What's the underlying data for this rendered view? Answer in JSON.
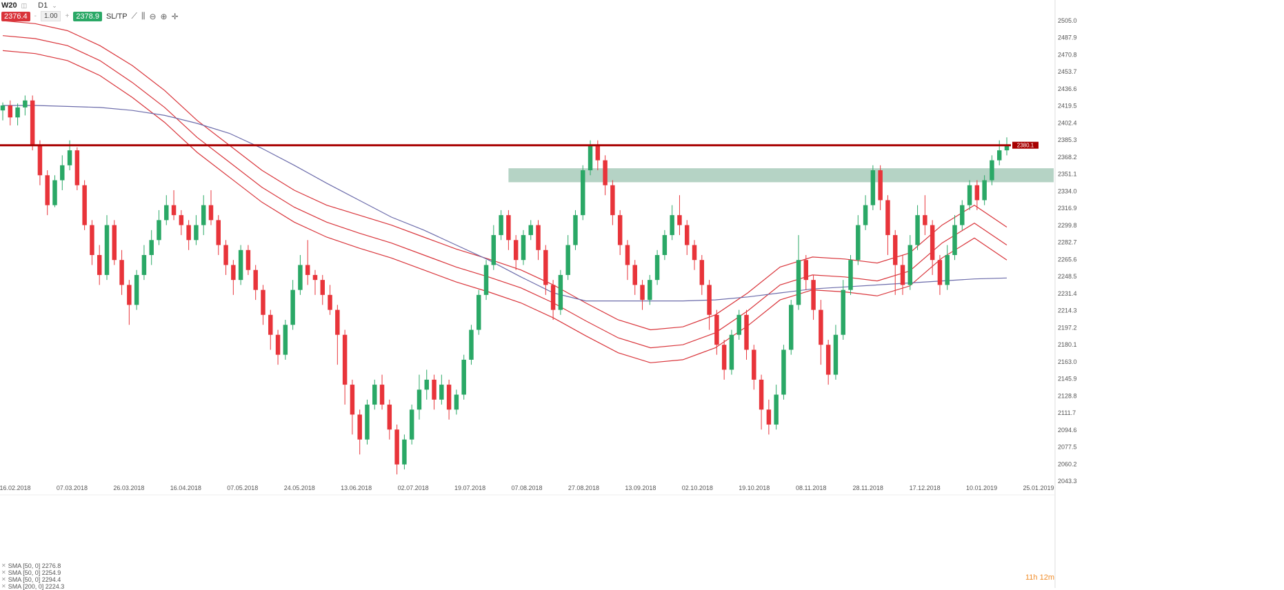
{
  "toolbar": {
    "symbol": "W20",
    "period": "D1",
    "sell_price": "2376.4",
    "volume": "1.00",
    "buy_price": "2378.9",
    "sl_tp": "SL/TP",
    "minus": "-",
    "plus": "+"
  },
  "timer": {
    "hours": "11h",
    "minutes": "12m"
  },
  "legend": [
    "SMA [50, 0] 2276.8",
    "SMA [50, 0] 2254.9",
    "SMA [50, 0] 2294.4",
    "SMA [200, 0] 2224.3"
  ],
  "colors": {
    "up": "#2aa866",
    "down": "#e8343a",
    "sma200": "#6b6baa",
    "sma_env": "#d9343a",
    "resistance": "#a80000",
    "zone": "#5c9e7e"
  },
  "chart_data": {
    "type": "candlestick",
    "ylim": [
      2043.3,
      2505.0
    ],
    "y_ticks": [
      "2505.0",
      "2487.9",
      "2470.8",
      "2453.7",
      "2436.6",
      "2419.5",
      "2402.4",
      "2385.3",
      "2368.2",
      "2351.1",
      "2334.0",
      "2316.9",
      "2299.8",
      "2282.7",
      "2265.6",
      "2248.5",
      "2231.4",
      "2214.3",
      "2197.2",
      "2180.1",
      "2163.0",
      "2145.9",
      "2128.8",
      "2111.7",
      "2094.6",
      "2077.5",
      "2060.2",
      "2043.3"
    ],
    "x_ticks": [
      "16.02.2018",
      "07.03.2018",
      "26.03.2018",
      "16.04.2018",
      "07.05.2018",
      "24.05.2018",
      "13.06.2018",
      "02.07.2018",
      "19.07.2018",
      "07.08.2018",
      "27.08.2018",
      "13.09.2018",
      "02.10.2018",
      "19.10.2018",
      "08.11.2018",
      "28.11.2018",
      "17.12.2018",
      "10.01.2019",
      "25.01.2019"
    ],
    "resistance_level": 2380.1,
    "resistance_label": "2380.1",
    "support_zone": [
      2343.0,
      2357.0
    ],
    "series": [
      {
        "name": "SMA [50, 0] 2276.8",
        "close": [
          2505,
          2502,
          2495,
          2480,
          2460,
          2435,
          2405,
          2380,
          2355,
          2335,
          2320,
          2310,
          2300,
          2288,
          2276,
          2266,
          2255,
          2240,
          2222,
          2205,
          2195,
          2198,
          2210,
          2232,
          2258,
          2268,
          2266,
          2262,
          2272,
          2300,
          2320,
          2298
        ]
      },
      {
        "name": "SMA [50, 0] 2254.9",
        "close": [
          2490,
          2487,
          2480,
          2465,
          2443,
          2418,
          2388,
          2363,
          2338,
          2318,
          2303,
          2292,
          2282,
          2270,
          2258,
          2248,
          2237,
          2222,
          2204,
          2187,
          2177,
          2180,
          2192,
          2214,
          2240,
          2250,
          2248,
          2244,
          2254,
          2282,
          2302,
          2280
        ]
      },
      {
        "name": "SMA [50, 0] 2294.4",
        "close": [
          2475,
          2472,
          2465,
          2450,
          2428,
          2403,
          2373,
          2348,
          2323,
          2303,
          2288,
          2277,
          2267,
          2255,
          2243,
          2233,
          2222,
          2207,
          2189,
          2172,
          2162,
          2165,
          2177,
          2199,
          2225,
          2235,
          2233,
          2229,
          2239,
          2267,
          2287,
          2265
        ]
      },
      {
        "name": "SMA [200, 0] 2224.3",
        "close": [
          2420,
          2420,
          2419,
          2418,
          2415,
          2410,
          2402,
          2392,
          2377,
          2360,
          2342,
          2325,
          2308,
          2295,
          2280,
          2265,
          2248,
          2232,
          2224,
          2224,
          2224,
          2224,
          2225,
          2228,
          2232,
          2236,
          2238,
          2240,
          2242,
          2244,
          2246,
          2247
        ]
      }
    ],
    "candles": [
      [
        2415,
        2420,
        2405,
        2423
      ],
      [
        2420,
        2408,
        2400,
        2425
      ],
      [
        2408,
        2418,
        2400,
        2422
      ],
      [
        2418,
        2425,
        2410,
        2430
      ],
      [
        2425,
        2380,
        2375,
        2430
      ],
      [
        2380,
        2350,
        2340,
        2385
      ],
      [
        2350,
        2320,
        2310,
        2355
      ],
      [
        2320,
        2345,
        2318,
        2350
      ],
      [
        2345,
        2360,
        2335,
        2370
      ],
      [
        2360,
        2375,
        2355,
        2385
      ],
      [
        2375,
        2340,
        2335,
        2378
      ],
      [
        2340,
        2300,
        2295,
        2345
      ],
      [
        2300,
        2270,
        2260,
        2305
      ],
      [
        2270,
        2250,
        2240,
        2280
      ],
      [
        2250,
        2300,
        2245,
        2310
      ],
      [
        2300,
        2265,
        2260,
        2305
      ],
      [
        2265,
        2240,
        2230,
        2275
      ],
      [
        2240,
        2220,
        2200,
        2245
      ],
      [
        2220,
        2250,
        2215,
        2255
      ],
      [
        2250,
        2270,
        2245,
        2280
      ],
      [
        2270,
        2285,
        2260,
        2295
      ],
      [
        2285,
        2305,
        2280,
        2315
      ],
      [
        2305,
        2320,
        2300,
        2330
      ],
      [
        2320,
        2310,
        2305,
        2335
      ],
      [
        2310,
        2300,
        2290,
        2315
      ],
      [
        2300,
        2285,
        2275,
        2305
      ],
      [
        2285,
        2300,
        2280,
        2310
      ],
      [
        2300,
        2320,
        2290,
        2330
      ],
      [
        2320,
        2305,
        2300,
        2335
      ],
      [
        2305,
        2280,
        2270,
        2310
      ],
      [
        2280,
        2260,
        2250,
        2285
      ],
      [
        2260,
        2245,
        2230,
        2265
      ],
      [
        2245,
        2275,
        2240,
        2280
      ],
      [
        2275,
        2255,
        2250,
        2280
      ],
      [
        2255,
        2235,
        2225,
        2260
      ],
      [
        2235,
        2210,
        2200,
        2240
      ],
      [
        2210,
        2190,
        2175,
        2215
      ],
      [
        2190,
        2170,
        2160,
        2195
      ],
      [
        2170,
        2200,
        2165,
        2205
      ],
      [
        2200,
        2235,
        2195,
        2245
      ],
      [
        2235,
        2260,
        2230,
        2270
      ],
      [
        2260,
        2250,
        2240,
        2285
      ],
      [
        2250,
        2245,
        2230,
        2255
      ],
      [
        2245,
        2230,
        2220,
        2250
      ],
      [
        2230,
        2215,
        2210,
        2240
      ],
      [
        2215,
        2190,
        2160,
        2220
      ],
      [
        2190,
        2140,
        2120,
        2195
      ],
      [
        2140,
        2110,
        2090,
        2145
      ],
      [
        2110,
        2085,
        2070,
        2115
      ],
      [
        2085,
        2120,
        2080,
        2125
      ],
      [
        2120,
        2140,
        2115,
        2145
      ],
      [
        2140,
        2120,
        2115,
        2150
      ],
      [
        2120,
        2095,
        2085,
        2125
      ],
      [
        2095,
        2060,
        2050,
        2100
      ],
      [
        2060,
        2085,
        2055,
        2090
      ],
      [
        2085,
        2115,
        2080,
        2120
      ],
      [
        2115,
        2135,
        2105,
        2150
      ],
      [
        2135,
        2145,
        2125,
        2155
      ],
      [
        2145,
        2125,
        2115,
        2150
      ],
      [
        2125,
        2140,
        2120,
        2150
      ],
      [
        2140,
        2115,
        2105,
        2145
      ],
      [
        2115,
        2130,
        2110,
        2135
      ],
      [
        2130,
        2165,
        2125,
        2170
      ],
      [
        2165,
        2195,
        2160,
        2200
      ],
      [
        2195,
        2230,
        2190,
        2235
      ],
      [
        2230,
        2260,
        2225,
        2265
      ],
      [
        2260,
        2290,
        2255,
        2300
      ],
      [
        2290,
        2310,
        2285,
        2315
      ],
      [
        2310,
        2285,
        2275,
        2315
      ],
      [
        2285,
        2265,
        2255,
        2290
      ],
      [
        2265,
        2290,
        2260,
        2295
      ],
      [
        2290,
        2300,
        2285,
        2305
      ],
      [
        2300,
        2275,
        2265,
        2305
      ],
      [
        2275,
        2240,
        2230,
        2280
      ],
      [
        2240,
        2215,
        2205,
        2245
      ],
      [
        2215,
        2250,
        2210,
        2255
      ],
      [
        2250,
        2280,
        2245,
        2290
      ],
      [
        2280,
        2310,
        2275,
        2315
      ],
      [
        2310,
        2355,
        2305,
        2360
      ],
      [
        2355,
        2380,
        2350,
        2385
      ],
      [
        2380,
        2365,
        2355,
        2385
      ],
      [
        2365,
        2340,
        2330,
        2370
      ],
      [
        2340,
        2310,
        2300,
        2345
      ],
      [
        2310,
        2280,
        2270,
        2315
      ],
      [
        2280,
        2260,
        2245,
        2285
      ],
      [
        2260,
        2240,
        2230,
        2265
      ],
      [
        2240,
        2225,
        2215,
        2245
      ],
      [
        2225,
        2245,
        2220,
        2250
      ],
      [
        2245,
        2270,
        2240,
        2275
      ],
      [
        2270,
        2290,
        2265,
        2295
      ],
      [
        2290,
        2310,
        2285,
        2320
      ],
      [
        2310,
        2300,
        2290,
        2330
      ],
      [
        2300,
        2280,
        2270,
        2305
      ],
      [
        2280,
        2265,
        2255,
        2285
      ],
      [
        2265,
        2240,
        2230,
        2270
      ],
      [
        2240,
        2210,
        2195,
        2245
      ],
      [
        2210,
        2180,
        2170,
        2215
      ],
      [
        2180,
        2155,
        2145,
        2185
      ],
      [
        2155,
        2190,
        2150,
        2195
      ],
      [
        2190,
        2210,
        2185,
        2215
      ],
      [
        2210,
        2175,
        2165,
        2215
      ],
      [
        2175,
        2145,
        2135,
        2180
      ],
      [
        2145,
        2115,
        2095,
        2150
      ],
      [
        2115,
        2100,
        2090,
        2125
      ],
      [
        2100,
        2130,
        2095,
        2140
      ],
      [
        2130,
        2175,
        2125,
        2180
      ],
      [
        2175,
        2220,
        2170,
        2225
      ],
      [
        2220,
        2265,
        2215,
        2290
      ],
      [
        2265,
        2245,
        2235,
        2270
      ],
      [
        2245,
        2215,
        2205,
        2250
      ],
      [
        2215,
        2180,
        2160,
        2225
      ],
      [
        2180,
        2150,
        2140,
        2185
      ],
      [
        2150,
        2190,
        2145,
        2200
      ],
      [
        2190,
        2235,
        2185,
        2245
      ],
      [
        2235,
        2265,
        2230,
        2270
      ],
      [
        2265,
        2300,
        2260,
        2310
      ],
      [
        2300,
        2320,
        2295,
        2330
      ],
      [
        2320,
        2355,
        2315,
        2360
      ],
      [
        2355,
        2325,
        2315,
        2360
      ],
      [
        2325,
        2290,
        2270,
        2330
      ],
      [
        2290,
        2260,
        2230,
        2295
      ],
      [
        2260,
        2240,
        2230,
        2270
      ],
      [
        2240,
        2280,
        2235,
        2290
      ],
      [
        2280,
        2310,
        2275,
        2320
      ],
      [
        2310,
        2300,
        2290,
        2330
      ],
      [
        2300,
        2265,
        2250,
        2305
      ],
      [
        2265,
        2240,
        2230,
        2270
      ],
      [
        2240,
        2270,
        2235,
        2280
      ],
      [
        2270,
        2300,
        2265,
        2310
      ],
      [
        2300,
        2320,
        2295,
        2325
      ],
      [
        2320,
        2340,
        2315,
        2345
      ],
      [
        2340,
        2325,
        2315,
        2345
      ],
      [
        2325,
        2345,
        2320,
        2350
      ],
      [
        2345,
        2365,
        2340,
        2370
      ],
      [
        2365,
        2375,
        2360,
        2385
      ],
      [
        2375,
        2380,
        2370,
        2388
      ]
    ]
  }
}
